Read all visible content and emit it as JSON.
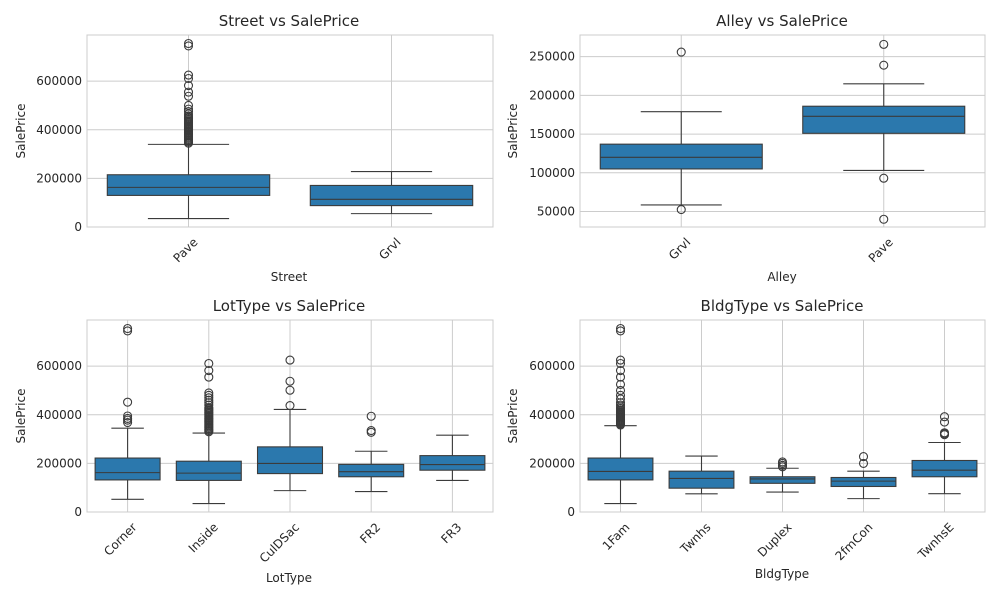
{
  "chart_data": [
    {
      "type": "box",
      "title": "Street vs SalePrice",
      "xlabel": "Street",
      "ylabel": "SalePrice",
      "ylim": [
        0,
        790000
      ],
      "yticks": [
        0,
        200000,
        400000,
        600000
      ],
      "ytick_labels": [
        "0",
        "200000",
        "400000",
        "600000"
      ],
      "grid": true,
      "color": "#2b78ad",
      "categories": [
        "Pave",
        "Grvl"
      ],
      "boxes": [
        {
          "category": "Pave",
          "q1": 130000,
          "median": 163000,
          "q3": 215000,
          "whisker_low": 34900,
          "whisker_high": 340000,
          "outliers": [
            345000,
            350000,
            355000,
            360000,
            365000,
            370000,
            375000,
            380000,
            385000,
            390000,
            395000,
            400000,
            405000,
            410000,
            415000,
            420000,
            425000,
            430000,
            435000,
            440000,
            446000,
            451000,
            457000,
            465000,
            475000,
            485000,
            500000,
            538000,
            555000,
            582000,
            611000,
            625000,
            745000,
            755000
          ]
        },
        {
          "category": "Grvl",
          "q1": 88000,
          "median": 114000,
          "q3": 171000,
          "whisker_low": 55000,
          "whisker_high": 228000,
          "outliers": []
        }
      ]
    },
    {
      "type": "box",
      "title": "Alley vs SalePrice",
      "xlabel": "Alley",
      "ylabel": "SalePrice",
      "ylim": [
        30000,
        278000
      ],
      "yticks": [
        50000,
        100000,
        150000,
        200000,
        250000
      ],
      "ytick_labels": [
        "50000",
        "100000",
        "150000",
        "200000",
        "250000"
      ],
      "grid": true,
      "color": "#2b78ad",
      "categories": [
        "Grvl",
        "Pave"
      ],
      "boxes": [
        {
          "category": "Grvl",
          "q1": 105000,
          "median": 120000,
          "q3": 137000,
          "whisker_low": 58500,
          "whisker_high": 179000,
          "outliers": [
            52500,
            256000
          ]
        },
        {
          "category": "Pave",
          "q1": 151000,
          "median": 173000,
          "q3": 186000,
          "whisker_low": 103000,
          "whisker_high": 215000,
          "outliers": [
            40000,
            93000,
            239000,
            265900
          ]
        }
      ]
    },
    {
      "type": "box",
      "title": "LotType vs SalePrice",
      "xlabel": "LotType",
      "ylabel": "SalePrice",
      "ylim": [
        0,
        790000
      ],
      "yticks": [
        0,
        200000,
        400000,
        600000
      ],
      "ytick_labels": [
        "0",
        "200000",
        "400000",
        "600000"
      ],
      "grid": true,
      "color": "#2b78ad",
      "categories": [
        "Corner",
        "Inside",
        "CulDSac",
        "FR2",
        "FR3"
      ],
      "boxes": [
        {
          "category": "Corner",
          "q1": 132000,
          "median": 162000,
          "q3": 222000,
          "whisker_low": 52000,
          "whisker_high": 345000,
          "outliers": [
            368000,
            378000,
            385000,
            395000,
            452000,
            745000,
            755000
          ]
        },
        {
          "category": "Inside",
          "q1": 130000,
          "median": 160000,
          "q3": 209000,
          "whisker_low": 34900,
          "whisker_high": 325000,
          "outliers": [
            330000,
            335000,
            340000,
            345000,
            350000,
            355000,
            360000,
            365000,
            370000,
            375000,
            380000,
            385000,
            390000,
            395000,
            400000,
            405000,
            410000,
            415000,
            420000,
            425000,
            430000,
            440000,
            450000,
            460000,
            470000,
            480000,
            490000,
            555000,
            582000,
            611000
          ]
        },
        {
          "category": "CulDSac",
          "q1": 158000,
          "median": 200000,
          "q3": 268000,
          "whisker_low": 88000,
          "whisker_high": 422000,
          "outliers": [
            438000,
            501000,
            538000,
            625000
          ]
        },
        {
          "category": "FR2",
          "q1": 145000,
          "median": 166000,
          "q3": 196000,
          "whisker_low": 84000,
          "whisker_high": 250000,
          "outliers": [
            328000,
            335000,
            394000
          ]
        },
        {
          "category": "FR3",
          "q1": 172000,
          "median": 195000,
          "q3": 232000,
          "whisker_low": 130000,
          "whisker_high": 316000,
          "outliers": []
        }
      ]
    },
    {
      "type": "box",
      "title": "BldgType vs SalePrice",
      "xlabel": "BldgType",
      "ylabel": "SalePrice",
      "ylim": [
        0,
        790000
      ],
      "yticks": [
        0,
        200000,
        400000,
        600000
      ],
      "ytick_labels": [
        "0",
        "200000",
        "400000",
        "600000"
      ],
      "grid": true,
      "color": "#2b78ad",
      "categories": [
        "1Fam",
        "Twnhs",
        "Duplex",
        "2fmCon",
        "TwnhsE"
      ],
      "boxes": [
        {
          "category": "1Fam",
          "q1": 132000,
          "median": 167000,
          "q3": 222000,
          "whisker_low": 34900,
          "whisker_high": 355000,
          "outliers": [
            358000,
            362000,
            366000,
            370000,
            374000,
            378000,
            382000,
            386000,
            390000,
            394000,
            398000,
            402000,
            406000,
            410000,
            415000,
            420000,
            426000,
            432000,
            440000,
            450000,
            465000,
            480000,
            500000,
            525000,
            555000,
            582000,
            611000,
            625000,
            745000,
            755000
          ]
        },
        {
          "category": "Twnhs",
          "q1": 98000,
          "median": 138000,
          "q3": 168000,
          "whisker_low": 75000,
          "whisker_high": 230000,
          "outliers": []
        },
        {
          "category": "Duplex",
          "q1": 118000,
          "median": 136000,
          "q3": 145000,
          "whisker_low": 82000,
          "whisker_high": 180000,
          "outliers": [
            186000,
            192000,
            200000,
            206000
          ]
        },
        {
          "category": "2fmCon",
          "q1": 105000,
          "median": 127000,
          "q3": 142000,
          "whisker_low": 55000,
          "whisker_high": 168000,
          "outliers": [
            200000,
            228000
          ]
        },
        {
          "category": "TwnhsE",
          "q1": 145000,
          "median": 172000,
          "q3": 212000,
          "whisker_low": 75500,
          "whisker_high": 286000,
          "outliers": [
            318000,
            322000,
            326000,
            370000,
            392000
          ]
        }
      ]
    }
  ]
}
